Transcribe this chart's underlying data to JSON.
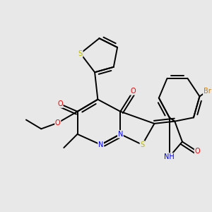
{
  "bg_color": "#e8e8e8",
  "bond_color": "#000000",
  "bond_width": 1.4,
  "atom_colors": {
    "N": "#0000ee",
    "O": "#ee0000",
    "S": "#bbbb00",
    "Br": "#cc7700",
    "C": "#000000"
  },
  "figsize": [
    3.0,
    3.0
  ],
  "dpi": 100,
  "font_size": 7.0
}
